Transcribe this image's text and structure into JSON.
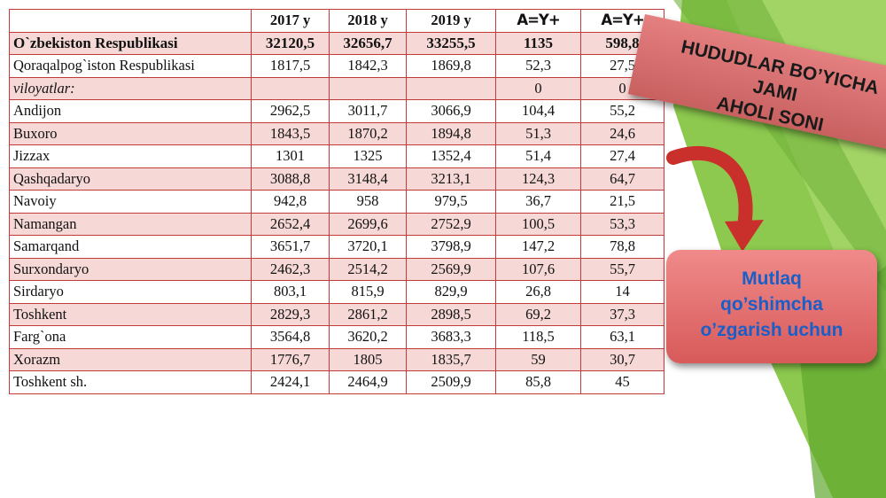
{
  "table": {
    "headers": [
      "",
      "2017 y",
      "2018 y",
      "2019 y",
      "A=Y+",
      "A=Y+"
    ],
    "rows": [
      {
        "name": "O`zbekiston Respublikasi",
        "v": [
          "32120,5",
          "32656,7",
          "33255,5",
          "1135",
          "598,8"
        ]
      },
      {
        "name": "Qoraqalpog`iston Respublikasi",
        "v": [
          "1817,5",
          "1842,3",
          "1869,8",
          "52,3",
          "27,5"
        ]
      },
      {
        "name": "viloyatlar:",
        "v": [
          "",
          "",
          "",
          "0",
          "0"
        ]
      },
      {
        "name": "Andijon",
        "v": [
          "2962,5",
          "3011,7",
          "3066,9",
          "104,4",
          "55,2"
        ]
      },
      {
        "name": "Buxoro",
        "v": [
          "1843,5",
          "1870,2",
          "1894,8",
          "51,3",
          "24,6"
        ]
      },
      {
        "name": "Jizzax",
        "v": [
          "1301",
          "1325",
          "1352,4",
          "51,4",
          "27,4"
        ]
      },
      {
        "name": "Qashqadaryo",
        "v": [
          "3088,8",
          "3148,4",
          "3213,1",
          "124,3",
          "64,7"
        ]
      },
      {
        "name": "Navoiy",
        "v": [
          "942,8",
          "958",
          "979,5",
          "36,7",
          "21,5"
        ]
      },
      {
        "name": "Namangan",
        "v": [
          "2652,4",
          "2699,6",
          "2752,9",
          "100,5",
          "53,3"
        ]
      },
      {
        "name": "Samarqand",
        "v": [
          "3651,7",
          "3720,1",
          "3798,9",
          "147,2",
          "78,8"
        ]
      },
      {
        "name": "Surxondaryo",
        "v": [
          "2462,3",
          "2514,2",
          "2569,9",
          "107,6",
          "55,7"
        ]
      },
      {
        "name": "Sirdaryo",
        "v": [
          "803,1",
          "815,9",
          "829,9",
          "26,8",
          "14"
        ]
      },
      {
        "name": "Toshkent",
        "v": [
          "2829,3",
          "2861,2",
          "2898,5",
          "69,2",
          "37,3"
        ]
      },
      {
        "name": "Farg`ona",
        "v": [
          "3564,8",
          "3620,2",
          "3683,3",
          "118,5",
          "63,1"
        ]
      },
      {
        "name": "Xorazm",
        "v": [
          "1776,7",
          "1805",
          "1835,7",
          "59",
          "30,7"
        ]
      },
      {
        "name": "Toshkent sh.",
        "v": [
          "2424,1",
          "2464,9",
          "2509,9",
          "85,8",
          "45"
        ]
      }
    ]
  },
  "banner": {
    "line1": "HUDUDLAR BO’YICHA JAMI",
    "line2": "AHOLI SONI"
  },
  "callout": {
    "line1": "Mutlaq",
    "line2": "qo’shimcha",
    "line3": "o’zgarish uchun"
  },
  "colors": {
    "table_border": "#c23b3b",
    "row_shade": "#f6d9d7",
    "green": "#7cc242",
    "callout_text": "#1a5ec8"
  },
  "icons": [
    "curved-arrow-icon"
  ]
}
